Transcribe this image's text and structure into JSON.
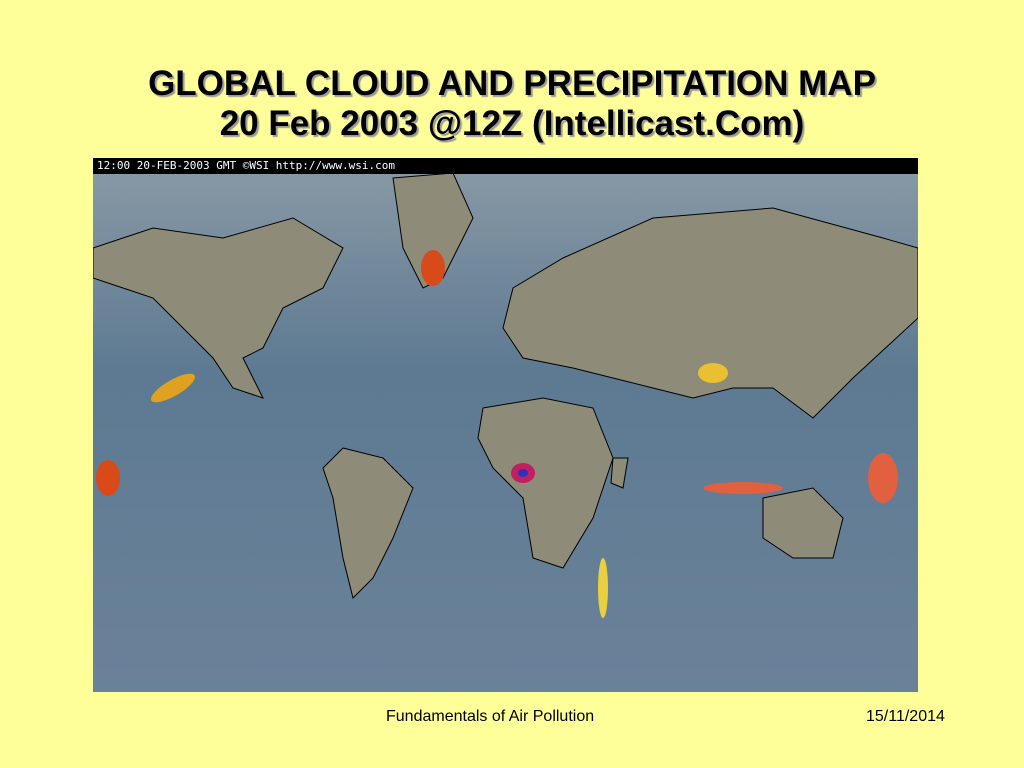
{
  "title": {
    "line1": "GLOBAL CLOUD AND PRECIPITATION MAP",
    "line2": "20 Feb 2003 @12Z (Intellicast.Com)"
  },
  "map": {
    "header": "12:00 20-FEB-2003 GMT ©WSI http://www.wsi.com"
  },
  "footer": {
    "text": "Fundamentals of Air Pollution",
    "date": "15/11/2014"
  }
}
